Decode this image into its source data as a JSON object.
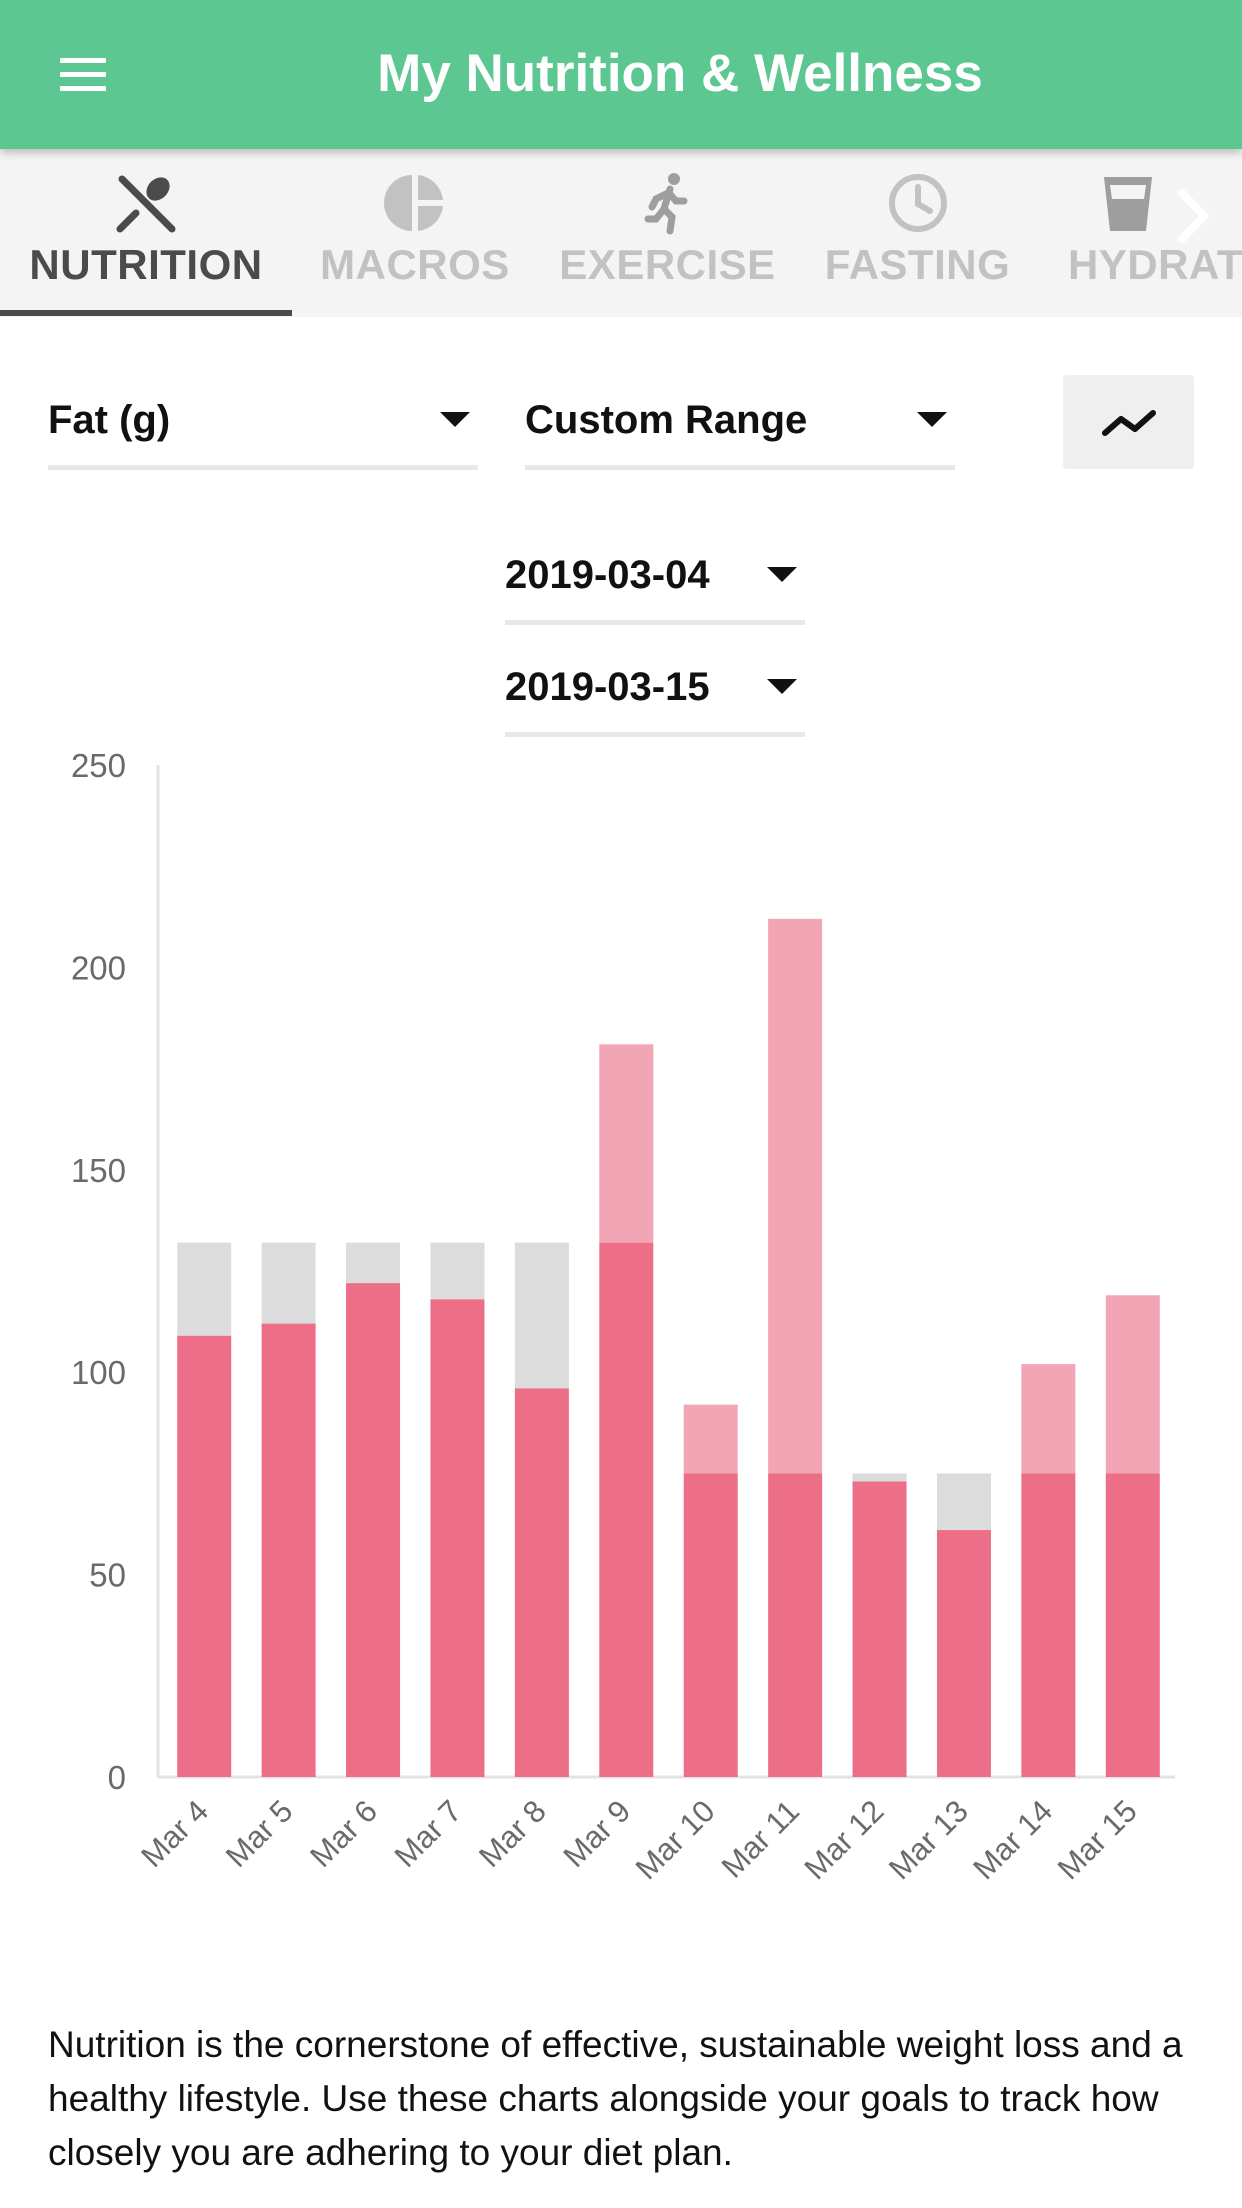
{
  "app": {
    "title": "My Nutrition & Wellness"
  },
  "header": {
    "menu_icon": "hamburger-menu-icon"
  },
  "tabs": [
    {
      "label": "NUTRITION",
      "icon": "fork-spoon-icon",
      "active": true
    },
    {
      "label": "MACROS",
      "icon": "pie-chart-icon",
      "active": false
    },
    {
      "label": "EXERCISE",
      "icon": "running-person-icon",
      "active": false
    },
    {
      "label": "FASTING",
      "icon": "clock-icon",
      "active": false
    },
    {
      "label": "HYDRATION",
      "icon": "water-glass-icon",
      "active": false
    }
  ],
  "filters": {
    "metric": "Fat (g)",
    "range": "Custom Range",
    "start_date": "2019-03-04",
    "end_date": "2019-03-15",
    "chart_type_icon": "line-chart-icon"
  },
  "colors": {
    "header": "#5dc791",
    "bar_consumed": "#ec6e87",
    "bar_over_goal": "#f2a5b4",
    "bar_under_goal": "#dcdcdc"
  },
  "chart_data": {
    "type": "bar",
    "stacked": true,
    "categories": [
      "Mar 4",
      "Mar 5",
      "Mar 6",
      "Mar 7",
      "Mar 8",
      "Mar 9",
      "Mar 10",
      "Mar 11",
      "Mar 12",
      "Mar 13",
      "Mar 14",
      "Mar 15"
    ],
    "consumed": [
      109,
      112,
      122,
      118,
      96,
      181,
      92,
      212,
      73,
      61,
      102,
      119
    ],
    "goal": [
      132,
      132,
      132,
      132,
      132,
      132,
      75,
      75,
      75,
      75,
      75,
      75
    ],
    "ylim": [
      0,
      250
    ],
    "yticks": [
      0,
      50,
      100,
      150,
      200,
      250
    ],
    "xlabel": "",
    "ylabel": "",
    "title": "",
    "grid": false,
    "legend": "none"
  },
  "info_text": "Nutrition is the cornerstone of effective, sustainable weight loss and a healthy lifestyle. Use these charts alongside your goals to track how closely you are adhering to your diet plan."
}
